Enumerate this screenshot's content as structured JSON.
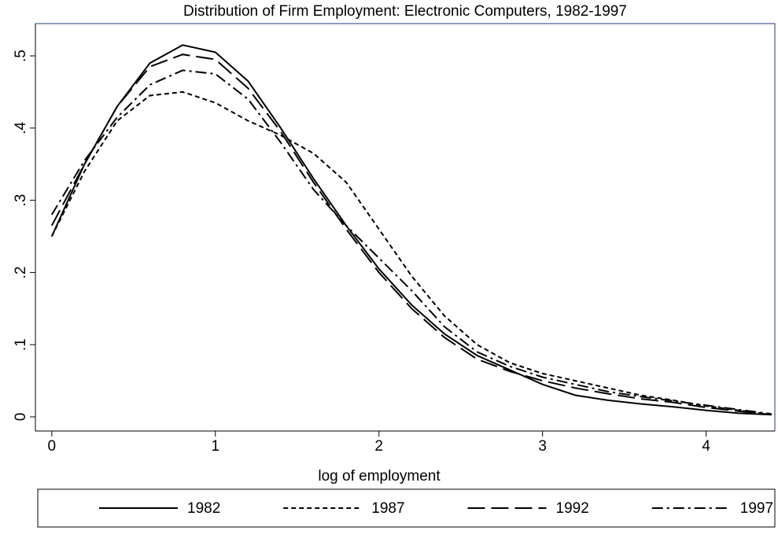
{
  "chart_data": {
    "type": "line",
    "title": "Distribution of Firm Employment: Electronic Computers, 1982-1997",
    "x_label": "log of employment",
    "x": [
      0,
      0.2,
      0.4,
      0.6,
      0.8,
      1.0,
      1.2,
      1.4,
      1.6,
      1.8,
      2.0,
      2.2,
      2.4,
      2.6,
      2.8,
      3.0,
      3.2,
      3.4,
      3.6,
      3.8,
      4.0,
      4.2,
      4.4
    ],
    "series": [
      {
        "name": "1982",
        "color": "#000000",
        "dash": "solid",
        "values": [
          0.25,
          0.35,
          0.43,
          0.49,
          0.515,
          0.505,
          0.465,
          0.4,
          0.33,
          0.265,
          0.205,
          0.155,
          0.115,
          0.085,
          0.065,
          0.045,
          0.03,
          0.023,
          0.018,
          0.014,
          0.009,
          0.005,
          0.003
        ]
      },
      {
        "name": "1987",
        "color": "#000000",
        "dash": "short",
        "values": [
          0.25,
          0.34,
          0.41,
          0.445,
          0.45,
          0.435,
          0.41,
          0.39,
          0.365,
          0.325,
          0.26,
          0.195,
          0.14,
          0.1,
          0.075,
          0.06,
          0.05,
          0.04,
          0.03,
          0.023,
          0.015,
          0.009,
          0.003
        ]
      },
      {
        "name": "1992",
        "color": "#000000",
        "dash": "long",
        "values": [
          0.265,
          0.35,
          0.43,
          0.485,
          0.502,
          0.495,
          0.455,
          0.395,
          0.325,
          0.26,
          0.2,
          0.15,
          0.11,
          0.08,
          0.063,
          0.05,
          0.04,
          0.032,
          0.025,
          0.02,
          0.013,
          0.008,
          0.003
        ]
      },
      {
        "name": "1997",
        "color": "#000000",
        "dash": "dashdot",
        "values": [
          0.28,
          0.355,
          0.415,
          0.46,
          0.48,
          0.475,
          0.44,
          0.38,
          0.315,
          0.265,
          0.22,
          0.175,
          0.125,
          0.09,
          0.07,
          0.055,
          0.045,
          0.035,
          0.028,
          0.022,
          0.016,
          0.01,
          0.004
        ]
      }
    ],
    "xlim": [
      -0.1,
      4.42
    ],
    "ylim": [
      -0.0196,
      0.5447
    ],
    "xticks": [
      0,
      1,
      2,
      3,
      4
    ],
    "yticks": [
      0,
      {
        "value": 0.1,
        "label": ".1"
      },
      {
        "value": 0.2,
        "label": ".2"
      },
      {
        "value": 0.3,
        "label": ".3"
      },
      {
        "value": 0.4,
        "label": ".4"
      },
      {
        "value": 0.5,
        "label": ".5"
      }
    ],
    "legend": "bottom"
  }
}
